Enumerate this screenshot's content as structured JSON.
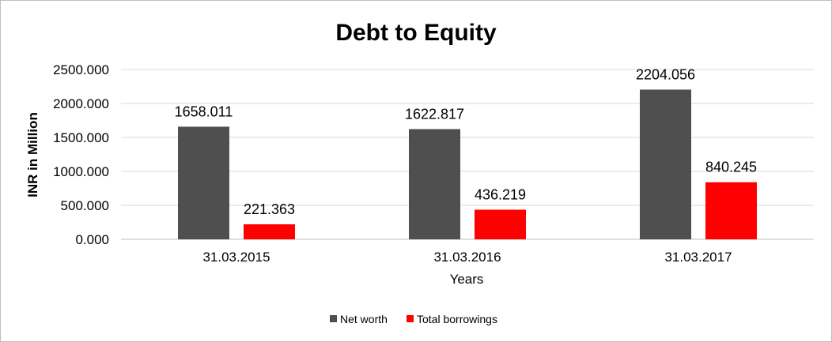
{
  "chart_data": {
    "type": "bar",
    "title": "Debt to Equity",
    "xlabel": "Years",
    "ylabel": "INR in Million",
    "categories": [
      "31.03.2015",
      "31.03.2016",
      "31.03.2017"
    ],
    "series": [
      {
        "name": "Net worth",
        "color": "#4f4f4f",
        "values": [
          1658.011,
          1622.817,
          2204.056
        ]
      },
      {
        "name": "Total borrowings",
        "color": "#ff0000",
        "values": [
          221.363,
          436.219,
          840.245
        ]
      }
    ],
    "ylim": [
      0,
      2500
    ],
    "yticks": [
      "0.000",
      "500.000",
      "1000.000",
      "1500.000",
      "2000.000",
      "2500.000"
    ],
    "data_labels": [
      [
        "1658.011",
        "1622.817",
        "2204.056"
      ],
      [
        "221.363",
        "436.219",
        "840.245"
      ]
    ],
    "grid": true,
    "legend_position": "bottom"
  }
}
